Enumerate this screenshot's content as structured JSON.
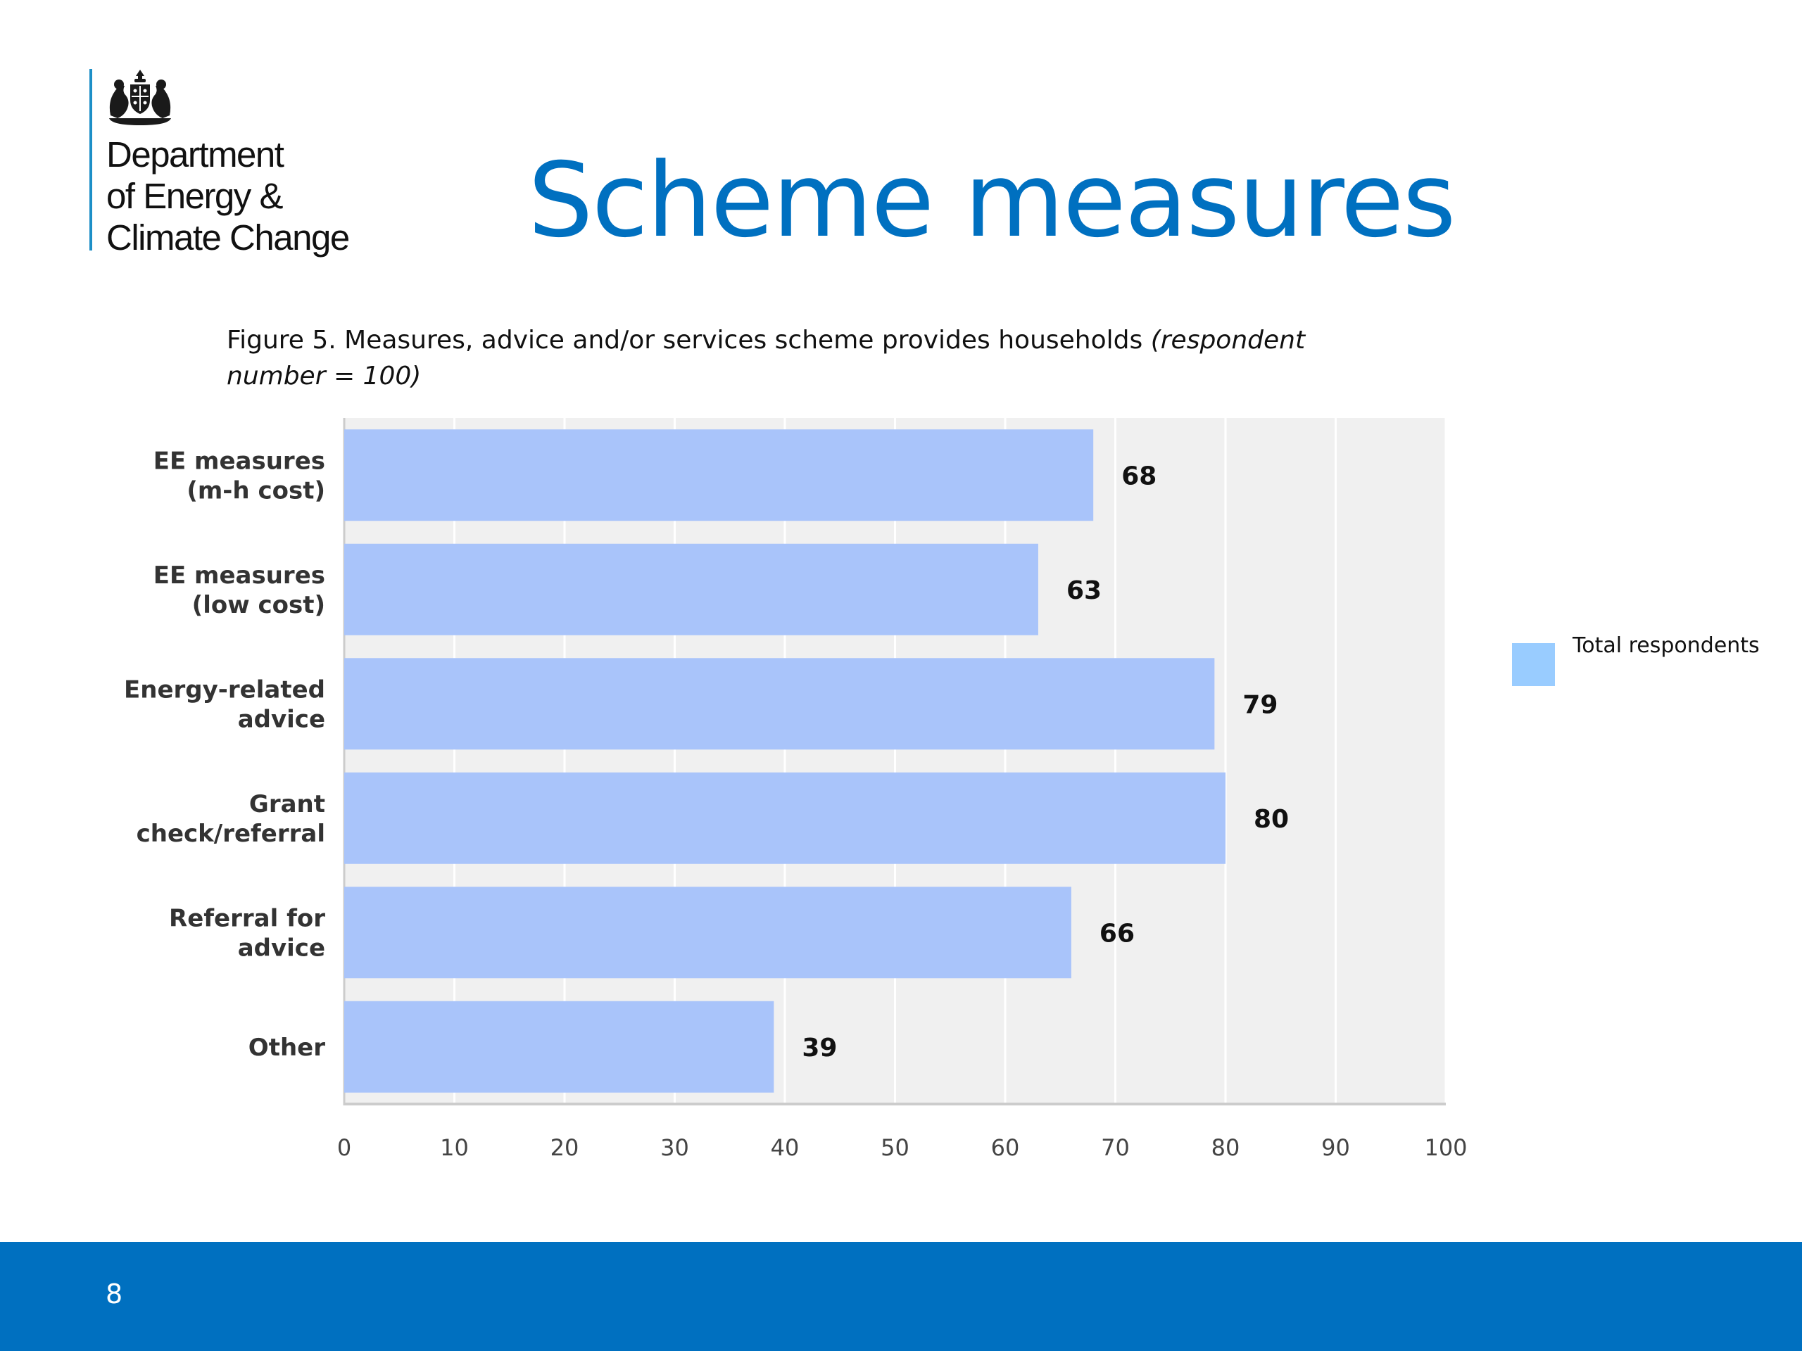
{
  "logo": {
    "lines": [
      "Department",
      "of Energy &",
      "Climate Change"
    ],
    "emblem": "royal-coat-of-arms-icon"
  },
  "slide": {
    "title": "Scheme measures",
    "page_number": "8"
  },
  "caption": {
    "text": "Figure 5. Measures, advice and/or services scheme provides households ",
    "italic": "(respondent number = 100)"
  },
  "chart_data": {
    "type": "bar",
    "orientation": "horizontal",
    "categories": [
      [
        "EE measures",
        "(m-h cost)"
      ],
      [
        "EE measures",
        "(low cost)"
      ],
      [
        "Energy-related",
        "advice"
      ],
      [
        "Grant",
        "check/referral"
      ],
      [
        "Referral for",
        "advice"
      ],
      [
        "Other"
      ]
    ],
    "series": [
      {
        "name": "Total respondents",
        "values": [
          68,
          63,
          79,
          80,
          66,
          39
        ]
      }
    ],
    "xlim": [
      0,
      100
    ],
    "x_ticks": [
      0,
      10,
      20,
      30,
      40,
      50,
      60,
      70,
      80,
      90,
      100
    ],
    "grid": true,
    "legend_position": "right",
    "bar_color": "#a9c4fa",
    "legend_color": "#99ccff",
    "plot_background": "#f0f0f0"
  },
  "footer": {
    "color": "#0070c0"
  }
}
